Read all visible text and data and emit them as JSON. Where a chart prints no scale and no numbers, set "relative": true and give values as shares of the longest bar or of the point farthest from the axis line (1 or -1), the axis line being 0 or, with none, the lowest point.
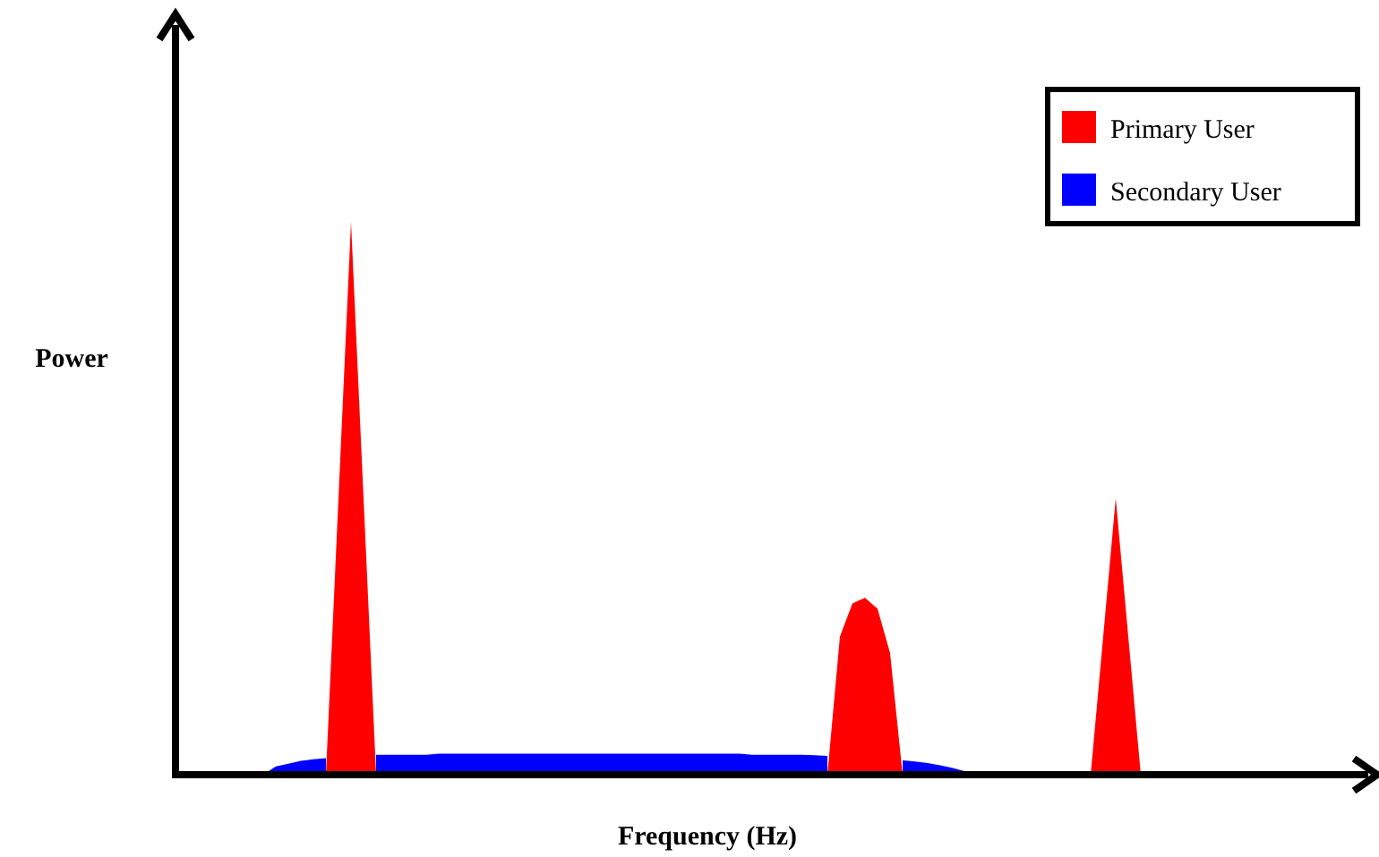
{
  "chart_data": {
    "type": "area",
    "relative": true,
    "xlabel": "Frequency (Hz)",
    "ylabel": "Power",
    "legend": "top right",
    "categories": [
      null,
      null,
      null,
      null,
      null,
      null,
      null,
      null,
      null,
      null,
      null,
      null,
      null,
      null,
      null,
      null,
      null,
      null,
      null,
      null,
      null,
      null,
      null,
      null,
      null,
      null,
      null,
      null,
      null,
      null,
      null,
      null,
      null,
      null,
      null,
      null,
      null,
      null,
      null,
      null,
      null,
      null,
      null,
      null,
      null,
      null,
      null,
      null,
      null,
      null,
      null,
      null,
      null,
      null,
      null,
      null,
      null,
      null,
      null,
      null,
      null,
      null,
      null,
      null,
      null,
      null,
      null,
      null,
      null,
      null,
      null,
      null,
      null,
      null,
      null,
      null,
      null,
      null,
      null,
      null,
      null,
      null,
      null,
      null,
      null,
      null,
      null,
      null,
      null,
      null,
      null,
      null,
      null,
      null,
      null,
      null
    ],
    "series": [
      {
        "name": "Primary User",
        "color": "#ff0000",
        "values": [
          0,
          0,
          0,
          0,
          0,
          0,
          0,
          0,
          0,
          0,
          0,
          0,
          0,
          0.5,
          1,
          0.5,
          0,
          0,
          0,
          0,
          0,
          0,
          0,
          0,
          0,
          0,
          0,
          0,
          0,
          0,
          0,
          0,
          0,
          0,
          0,
          0,
          0,
          0,
          0,
          0,
          0,
          0,
          0,
          0,
          0,
          0,
          0,
          0,
          0,
          0,
          0,
          0,
          0,
          0.25,
          0.31,
          0.32,
          0.3,
          0.22,
          0,
          0,
          0,
          0,
          0,
          0,
          0,
          0,
          0,
          0,
          0,
          0,
          0,
          0,
          0,
          0,
          0.25,
          0.5,
          0.25,
          0,
          0,
          0,
          0,
          0,
          0,
          0,
          0,
          0,
          0,
          0,
          0,
          0,
          0,
          0,
          0,
          0,
          0,
          0
        ]
      },
      {
        "name": "Secondary User",
        "color": "#0000ff",
        "values": [
          0,
          0,
          0,
          0,
          0,
          0,
          0,
          0,
          0.015,
          0.02,
          0.025,
          0.028,
          0.03,
          null,
          null,
          null,
          0.036,
          0.036,
          0.036,
          0.036,
          0.036,
          0.038,
          0.038,
          0.038,
          0.038,
          0.038,
          0.038,
          0.038,
          0.038,
          0.038,
          0.038,
          0.038,
          0.038,
          0.038,
          0.038,
          0.038,
          0.038,
          0.038,
          0.038,
          0.038,
          0.038,
          0.038,
          0.038,
          0.038,
          0.038,
          0.038,
          0.036,
          0.036,
          0.036,
          0.036,
          0.036,
          0.035,
          0.034,
          null,
          null,
          null,
          null,
          null,
          0.026,
          0.024,
          0.021,
          0.017,
          0.012,
          0.006,
          0,
          0,
          0,
          0,
          0,
          0,
          0,
          0,
          0,
          0,
          0,
          0,
          0,
          0,
          0,
          0,
          0,
          0,
          0,
          0,
          0,
          0,
          0,
          0,
          0,
          0,
          0,
          0,
          0,
          0,
          0,
          0
        ]
      }
    ]
  }
}
